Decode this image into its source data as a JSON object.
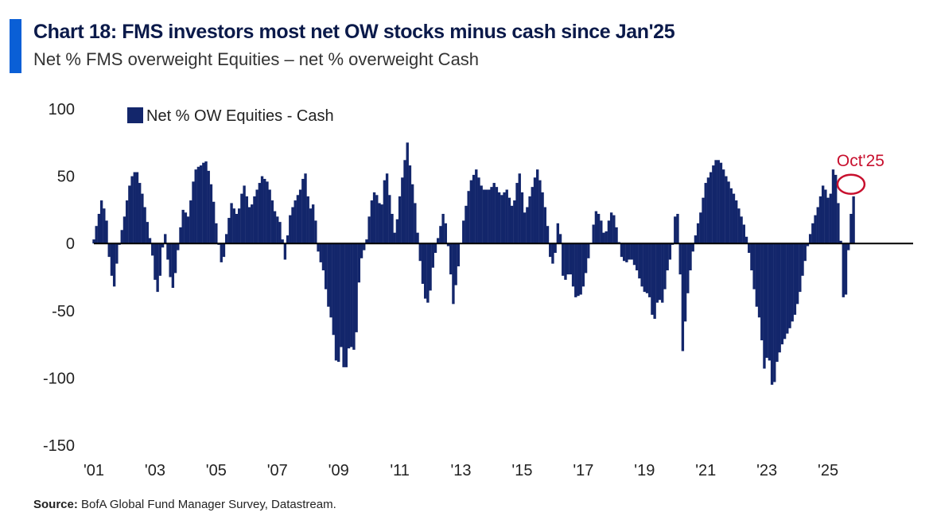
{
  "header": {
    "title": "Chart 18: FMS investors most net OW stocks minus cash since Jan'25",
    "subtitle": "Net % FMS overweight Equities – net % overweight Cash"
  },
  "source": {
    "label": "Source:",
    "text": "BofA Global Fund Manager Survey, Datastream."
  },
  "colors": {
    "bar": "#13266b",
    "accent": "#0a5fd6",
    "annotation": "#c8102e",
    "axis": "#000000"
  },
  "chart_data": {
    "type": "bar",
    "title": "Chart 18: FMS investors most net OW stocks minus cash since Jan'25",
    "ylabel": "",
    "xlabel": "",
    "ylim": [
      -150,
      100
    ],
    "yticks": [
      100,
      50,
      0,
      -50,
      -100,
      -150
    ],
    "xticks": [
      "'01",
      "'03",
      "'05",
      "'07",
      "'09",
      "'11",
      "'13",
      "'15",
      "'17",
      "'19",
      "'21",
      "'23",
      "'25"
    ],
    "xrange": [
      2001.0,
      2027.0
    ],
    "legend": {
      "label": "Net % OW Equities - Cash",
      "position": "top-left"
    },
    "annotation": {
      "label": "Oct'25",
      "x": 2025.75,
      "y": 44
    },
    "series": [
      {
        "name": "Net % OW Equities - Cash",
        "anchors": [
          [
            2001.0,
            3
          ],
          [
            2001.25,
            32
          ],
          [
            2001.4,
            22
          ],
          [
            2001.5,
            -10
          ],
          [
            2001.65,
            -35
          ],
          [
            2001.8,
            -5
          ],
          [
            2002.0,
            20
          ],
          [
            2002.2,
            48
          ],
          [
            2002.4,
            55
          ],
          [
            2002.6,
            35
          ],
          [
            2002.8,
            10
          ],
          [
            2002.95,
            -15
          ],
          [
            2003.05,
            -40
          ],
          [
            2003.2,
            -20
          ],
          [
            2003.3,
            15
          ],
          [
            2003.45,
            -20
          ],
          [
            2003.6,
            -35
          ],
          [
            2003.75,
            -5
          ],
          [
            2003.9,
            25
          ],
          [
            2004.1,
            20
          ],
          [
            2004.3,
            55
          ],
          [
            2004.5,
            58
          ],
          [
            2004.65,
            62
          ],
          [
            2004.8,
            50
          ],
          [
            2004.95,
            25
          ],
          [
            2005.05,
            5
          ],
          [
            2005.2,
            -20
          ],
          [
            2005.35,
            10
          ],
          [
            2005.5,
            30
          ],
          [
            2005.7,
            20
          ],
          [
            2005.9,
            45
          ],
          [
            2006.1,
            25
          ],
          [
            2006.3,
            38
          ],
          [
            2006.5,
            50
          ],
          [
            2006.7,
            45
          ],
          [
            2006.9,
            25
          ],
          [
            2007.1,
            15
          ],
          [
            2007.25,
            -12
          ],
          [
            2007.4,
            20
          ],
          [
            2007.55,
            30
          ],
          [
            2007.75,
            40
          ],
          [
            2007.9,
            55
          ],
          [
            2008.05,
            25
          ],
          [
            2008.2,
            30
          ],
          [
            2008.35,
            -10
          ],
          [
            2008.5,
            -20
          ],
          [
            2008.65,
            -45
          ],
          [
            2008.8,
            -60
          ],
          [
            2008.95,
            -95
          ],
          [
            2009.1,
            -75
          ],
          [
            2009.2,
            -100
          ],
          [
            2009.35,
            -75
          ],
          [
            2009.55,
            -80
          ],
          [
            2009.7,
            -15
          ],
          [
            2009.9,
            0
          ],
          [
            2010.05,
            30
          ],
          [
            2010.2,
            40
          ],
          [
            2010.4,
            25
          ],
          [
            2010.55,
            58
          ],
          [
            2010.7,
            30
          ],
          [
            2010.85,
            5
          ],
          [
            2011.0,
            35
          ],
          [
            2011.15,
            60
          ],
          [
            2011.25,
            75
          ],
          [
            2011.35,
            55
          ],
          [
            2011.5,
            30
          ],
          [
            2011.65,
            -10
          ],
          [
            2011.8,
            -40
          ],
          [
            2011.95,
            -45
          ],
          [
            2012.1,
            -15
          ],
          [
            2012.3,
            10
          ],
          [
            2012.45,
            25
          ],
          [
            2012.6,
            -5
          ],
          [
            2012.75,
            -45
          ],
          [
            2012.9,
            -20
          ],
          [
            2013.1,
            20
          ],
          [
            2013.3,
            45
          ],
          [
            2013.5,
            55
          ],
          [
            2013.7,
            40
          ],
          [
            2013.9,
            40
          ],
          [
            2014.1,
            45
          ],
          [
            2014.3,
            35
          ],
          [
            2014.5,
            40
          ],
          [
            2014.7,
            25
          ],
          [
            2014.9,
            55
          ],
          [
            2015.1,
            20
          ],
          [
            2015.3,
            40
          ],
          [
            2015.5,
            55
          ],
          [
            2015.7,
            35
          ],
          [
            2015.85,
            10
          ],
          [
            2015.95,
            -20
          ],
          [
            2016.1,
            -5
          ],
          [
            2016.2,
            25
          ],
          [
            2016.35,
            -30
          ],
          [
            2016.55,
            -20
          ],
          [
            2016.75,
            -40
          ],
          [
            2016.95,
            -38
          ],
          [
            2017.1,
            -20
          ],
          [
            2017.25,
            0
          ],
          [
            2017.4,
            25
          ],
          [
            2017.55,
            20
          ],
          [
            2017.7,
            5
          ],
          [
            2017.85,
            18
          ],
          [
            2017.95,
            26
          ],
          [
            2018.1,
            10
          ],
          [
            2018.25,
            -10
          ],
          [
            2018.4,
            -15
          ],
          [
            2018.55,
            -10
          ],
          [
            2018.75,
            -20
          ],
          [
            2018.95,
            -35
          ],
          [
            2019.15,
            -38
          ],
          [
            2019.3,
            -60
          ],
          [
            2019.45,
            -40
          ],
          [
            2019.6,
            -45
          ],
          [
            2019.75,
            -20
          ],
          [
            2019.9,
            -5
          ],
          [
            2020.0,
            20
          ],
          [
            2020.1,
            22
          ],
          [
            2020.25,
            -80
          ],
          [
            2020.4,
            -40
          ],
          [
            2020.55,
            -10
          ],
          [
            2020.7,
            10
          ],
          [
            2020.85,
            25
          ],
          [
            2021.0,
            45
          ],
          [
            2021.2,
            55
          ],
          [
            2021.35,
            63
          ],
          [
            2021.5,
            60
          ],
          [
            2021.7,
            48
          ],
          [
            2021.9,
            38
          ],
          [
            2022.1,
            25
          ],
          [
            2022.3,
            10
          ],
          [
            2022.5,
            -20
          ],
          [
            2022.65,
            -45
          ],
          [
            2022.8,
            -60
          ],
          [
            2022.9,
            -95
          ],
          [
            2023.05,
            -80
          ],
          [
            2023.2,
            -112
          ],
          [
            2023.35,
            -85
          ],
          [
            2023.5,
            -75
          ],
          [
            2023.7,
            -65
          ],
          [
            2023.9,
            -55
          ],
          [
            2024.05,
            -40
          ],
          [
            2024.2,
            -20
          ],
          [
            2024.35,
            0
          ],
          [
            2024.5,
            15
          ],
          [
            2024.65,
            25
          ],
          [
            2024.85,
            45
          ],
          [
            2025.05,
            30
          ],
          [
            2025.2,
            62
          ],
          [
            2025.3,
            40
          ],
          [
            2025.4,
            10
          ],
          [
            2025.5,
            -40
          ],
          [
            2025.6,
            -38
          ],
          [
            2025.65,
            -15
          ],
          [
            2025.7,
            15
          ],
          [
            2025.8,
            30
          ],
          [
            2025.9,
            44
          ]
        ]
      }
    ]
  }
}
